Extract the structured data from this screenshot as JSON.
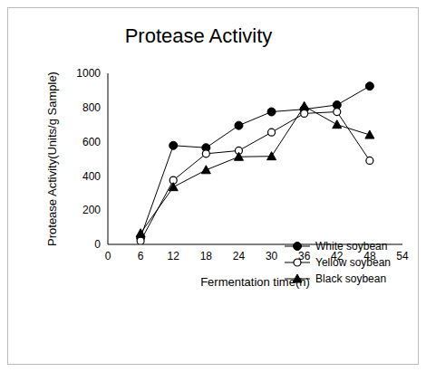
{
  "chart_data": {
    "type": "line",
    "title": "Protease Activity",
    "x_label": "Fermentation time(h)",
    "y_label": "Protease Activity(Units/g Sample)",
    "x": [
      6,
      12,
      18,
      24,
      30,
      36,
      42,
      48
    ],
    "xlim": [
      0,
      54
    ],
    "xticks": [
      0,
      6,
      12,
      18,
      24,
      30,
      36,
      42,
      48,
      54
    ],
    "ylim": [
      0,
      1000
    ],
    "yticks": [
      0,
      200,
      400,
      600,
      800,
      1000
    ],
    "grid": false,
    "legend": "lower right",
    "series": [
      {
        "name": "White soybean",
        "color": "#000000",
        "marker": "filled_circle",
        "values": [
          40,
          578,
          565,
          695,
          775,
          790,
          815,
          925
        ]
      },
      {
        "name": "Yellow soybean",
        "color": "#000000",
        "marker": "open_circle",
        "values": [
          20,
          375,
          530,
          548,
          655,
          765,
          775,
          490
        ]
      },
      {
        "name": "Black soybean",
        "color": "#000000",
        "marker": "triangle",
        "values": [
          65,
          335,
          435,
          512,
          515,
          808,
          700,
          640
        ]
      }
    ]
  }
}
